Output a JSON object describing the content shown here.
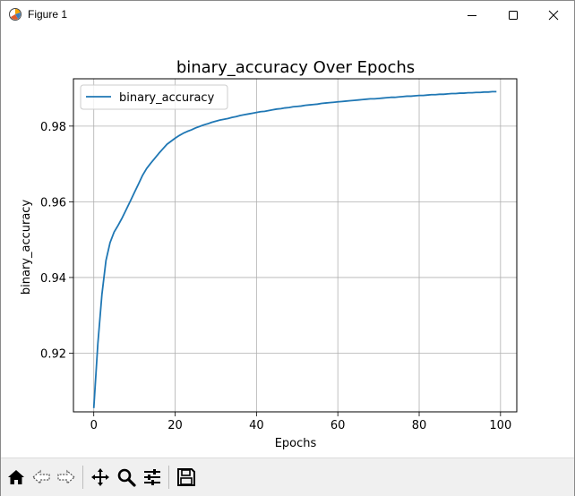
{
  "window": {
    "title": "Figure 1"
  },
  "colors": {
    "line": "#1f77b4",
    "grid": "#b0b0b0",
    "axes": "#000000"
  },
  "toolbar": {
    "icons": [
      "home-icon",
      "back-arrow-icon",
      "forward-arrow-icon",
      "pan-icon",
      "zoom-icon",
      "configure-subplots-icon",
      "save-icon"
    ]
  },
  "chart_data": {
    "type": "line",
    "title": "binary_accuracy Over Epochs",
    "xlabel": "Epochs",
    "ylabel": "binary_accuracy",
    "xlim": [
      -5,
      104
    ],
    "ylim": [
      0.9045,
      0.9925
    ],
    "xticks": [
      0,
      20,
      40,
      60,
      80,
      100
    ],
    "xtick_labels": [
      "0",
      "20",
      "40",
      "60",
      "80",
      "100"
    ],
    "yticks": [
      0.92,
      0.94,
      0.96,
      0.98
    ],
    "ytick_labels": [
      "0.92",
      "0.94",
      "0.96",
      "0.98"
    ],
    "grid": true,
    "legend_position": "upper-left",
    "series": [
      {
        "name": "binary_accuracy",
        "color": "#1f77b4",
        "x": [
          0,
          1,
          2,
          3,
          4,
          5,
          6,
          7,
          8,
          9,
          10,
          11,
          12,
          13,
          14,
          15,
          16,
          17,
          18,
          19,
          20,
          21,
          22,
          23,
          24,
          25,
          26,
          27,
          28,
          29,
          30,
          31,
          32,
          33,
          34,
          35,
          36,
          37,
          38,
          39,
          40,
          41,
          42,
          43,
          44,
          45,
          46,
          47,
          48,
          49,
          50,
          51,
          52,
          53,
          54,
          55,
          56,
          57,
          58,
          59,
          60,
          61,
          62,
          63,
          64,
          65,
          66,
          67,
          68,
          69,
          70,
          71,
          72,
          73,
          74,
          75,
          76,
          77,
          78,
          79,
          80,
          81,
          82,
          83,
          84,
          85,
          86,
          87,
          88,
          89,
          90,
          91,
          92,
          93,
          94,
          95,
          96,
          97,
          98,
          99
        ],
        "y": [
          0.9055,
          0.9225,
          0.9355,
          0.9445,
          0.9492,
          0.952,
          0.9538,
          0.9558,
          0.958,
          0.9602,
          0.9625,
          0.9647,
          0.967,
          0.9688,
          0.9702,
          0.9715,
          0.9728,
          0.974,
          0.9752,
          0.976,
          0.9768,
          0.9775,
          0.9781,
          0.9786,
          0.979,
          0.9795,
          0.9799,
          0.9803,
          0.9806,
          0.981,
          0.9813,
          0.9816,
          0.9818,
          0.982,
          0.9823,
          0.9825,
          0.9828,
          0.983,
          0.9832,
          0.9834,
          0.9836,
          0.9838,
          0.9839,
          0.9841,
          0.9843,
          0.9845,
          0.9846,
          0.9848,
          0.9849,
          0.9851,
          0.9852,
          0.9853,
          0.9855,
          0.9856,
          0.9857,
          0.9858,
          0.986,
          0.9861,
          0.9862,
          0.9863,
          0.9864,
          0.9865,
          0.9866,
          0.9867,
          0.9868,
          0.9869,
          0.987,
          0.9871,
          0.9872,
          0.9872,
          0.9873,
          0.9874,
          0.9875,
          0.9876,
          0.9876,
          0.9877,
          0.9878,
          0.9879,
          0.9879,
          0.988,
          0.9881,
          0.9881,
          0.9882,
          0.9883,
          0.9883,
          0.9884,
          0.9884,
          0.9885,
          0.9886,
          0.9886,
          0.9887,
          0.9887,
          0.9888,
          0.9888,
          0.9889,
          0.9889,
          0.989,
          0.989,
          0.9891,
          0.9891
        ]
      }
    ]
  }
}
